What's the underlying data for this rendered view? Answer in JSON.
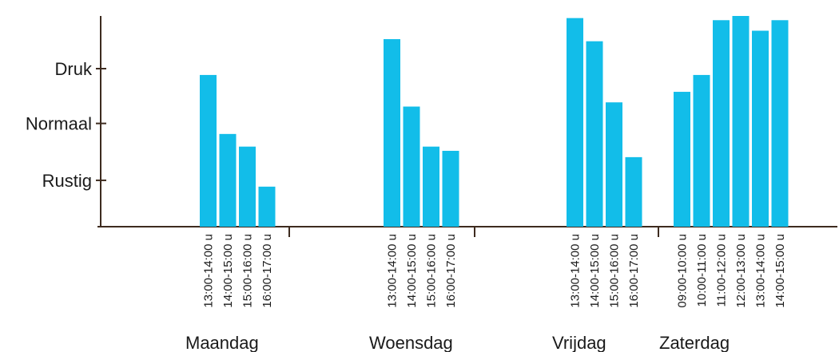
{
  "chart_data": {
    "type": "bar",
    "ylim": [
      0,
      1
    ],
    "y_ticks": [
      {
        "label": "Rustig",
        "value": 0.22
      },
      {
        "label": "Normaal",
        "value": 0.49
      },
      {
        "label": "Druk",
        "value": 0.75
      }
    ],
    "bar_color": "#12bde9",
    "axis_color": "#3d2b1f",
    "grid": false,
    "groups": [
      {
        "name": "Maandag",
        "categories": [
          "13:00-14:00 u",
          "14:00-15:00 u",
          "15:00-16:00 u",
          "16:00-17:00 u"
        ],
        "values": [
          0.72,
          0.44,
          0.38,
          0.19
        ]
      },
      {
        "name": "Woensdag",
        "categories": [
          "13:00-14:00 u",
          "14:00-15:00 u",
          "15:00-16:00 u",
          "16:00-17:00 u"
        ],
        "values": [
          0.89,
          0.57,
          0.38,
          0.36
        ]
      },
      {
        "name": "Vrijdag",
        "categories": [
          "13:00-14:00 u",
          "14:00-15:00 u",
          "15:00-16:00 u",
          "16:00-17:00 u"
        ],
        "values": [
          0.99,
          0.88,
          0.59,
          0.33
        ]
      },
      {
        "name": "Zaterdag",
        "categories": [
          "09:00-10:00 u",
          "10:00-11:00 u",
          "11:00-12:00 u",
          "12:00-13:00 u",
          "13:00-14:00 u",
          "14:00-15:00 u"
        ],
        "values": [
          0.64,
          0.72,
          0.98,
          1.0,
          0.93,
          0.98
        ]
      }
    ]
  }
}
